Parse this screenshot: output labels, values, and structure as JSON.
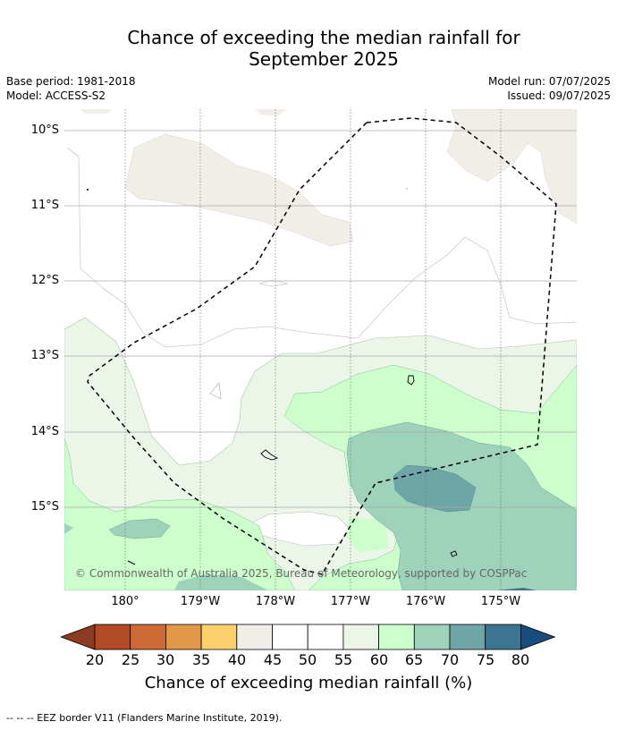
{
  "title_line1": "Chance of exceeding the median rainfall for",
  "title_line2": "September 2025",
  "base_period": "Base period: 1981-2018",
  "model": "Model: ACCESS-S2",
  "model_run": "Model run: 07/07/2025",
  "issued": "Issued: 09/07/2025",
  "lat_labels": [
    "10°S",
    "11°S",
    "12°S",
    "13°S",
    "14°S",
    "15°S"
  ],
  "lon_labels": [
    "180°",
    "179°W",
    "178°W",
    "177°W",
    "176°W",
    "175°W"
  ],
  "copyright": "© Commonwealth of Australia 2025, Bureau of Meteorology, supported by COSPPac",
  "colorbar": {
    "ticks": [
      "20",
      "25",
      "30",
      "35",
      "40",
      "45",
      "50",
      "55",
      "60",
      "65",
      "70",
      "75",
      "80"
    ],
    "colors": [
      "#8c3a22",
      "#b24a28",
      "#cd6935",
      "#e19849",
      "#fdd06e",
      "#f1ede7",
      "#ffffff",
      "#ffffff",
      "#ebf5e8",
      "#ccffcc",
      "#9ed2bb",
      "#6ea6a7",
      "#3e7493",
      "#164c7e"
    ],
    "label": "Chance of exceeding median rainfall (%)"
  },
  "footnote": "--  --  -- EEZ border V11 (Flanders Marine Institute, 2019)."
}
